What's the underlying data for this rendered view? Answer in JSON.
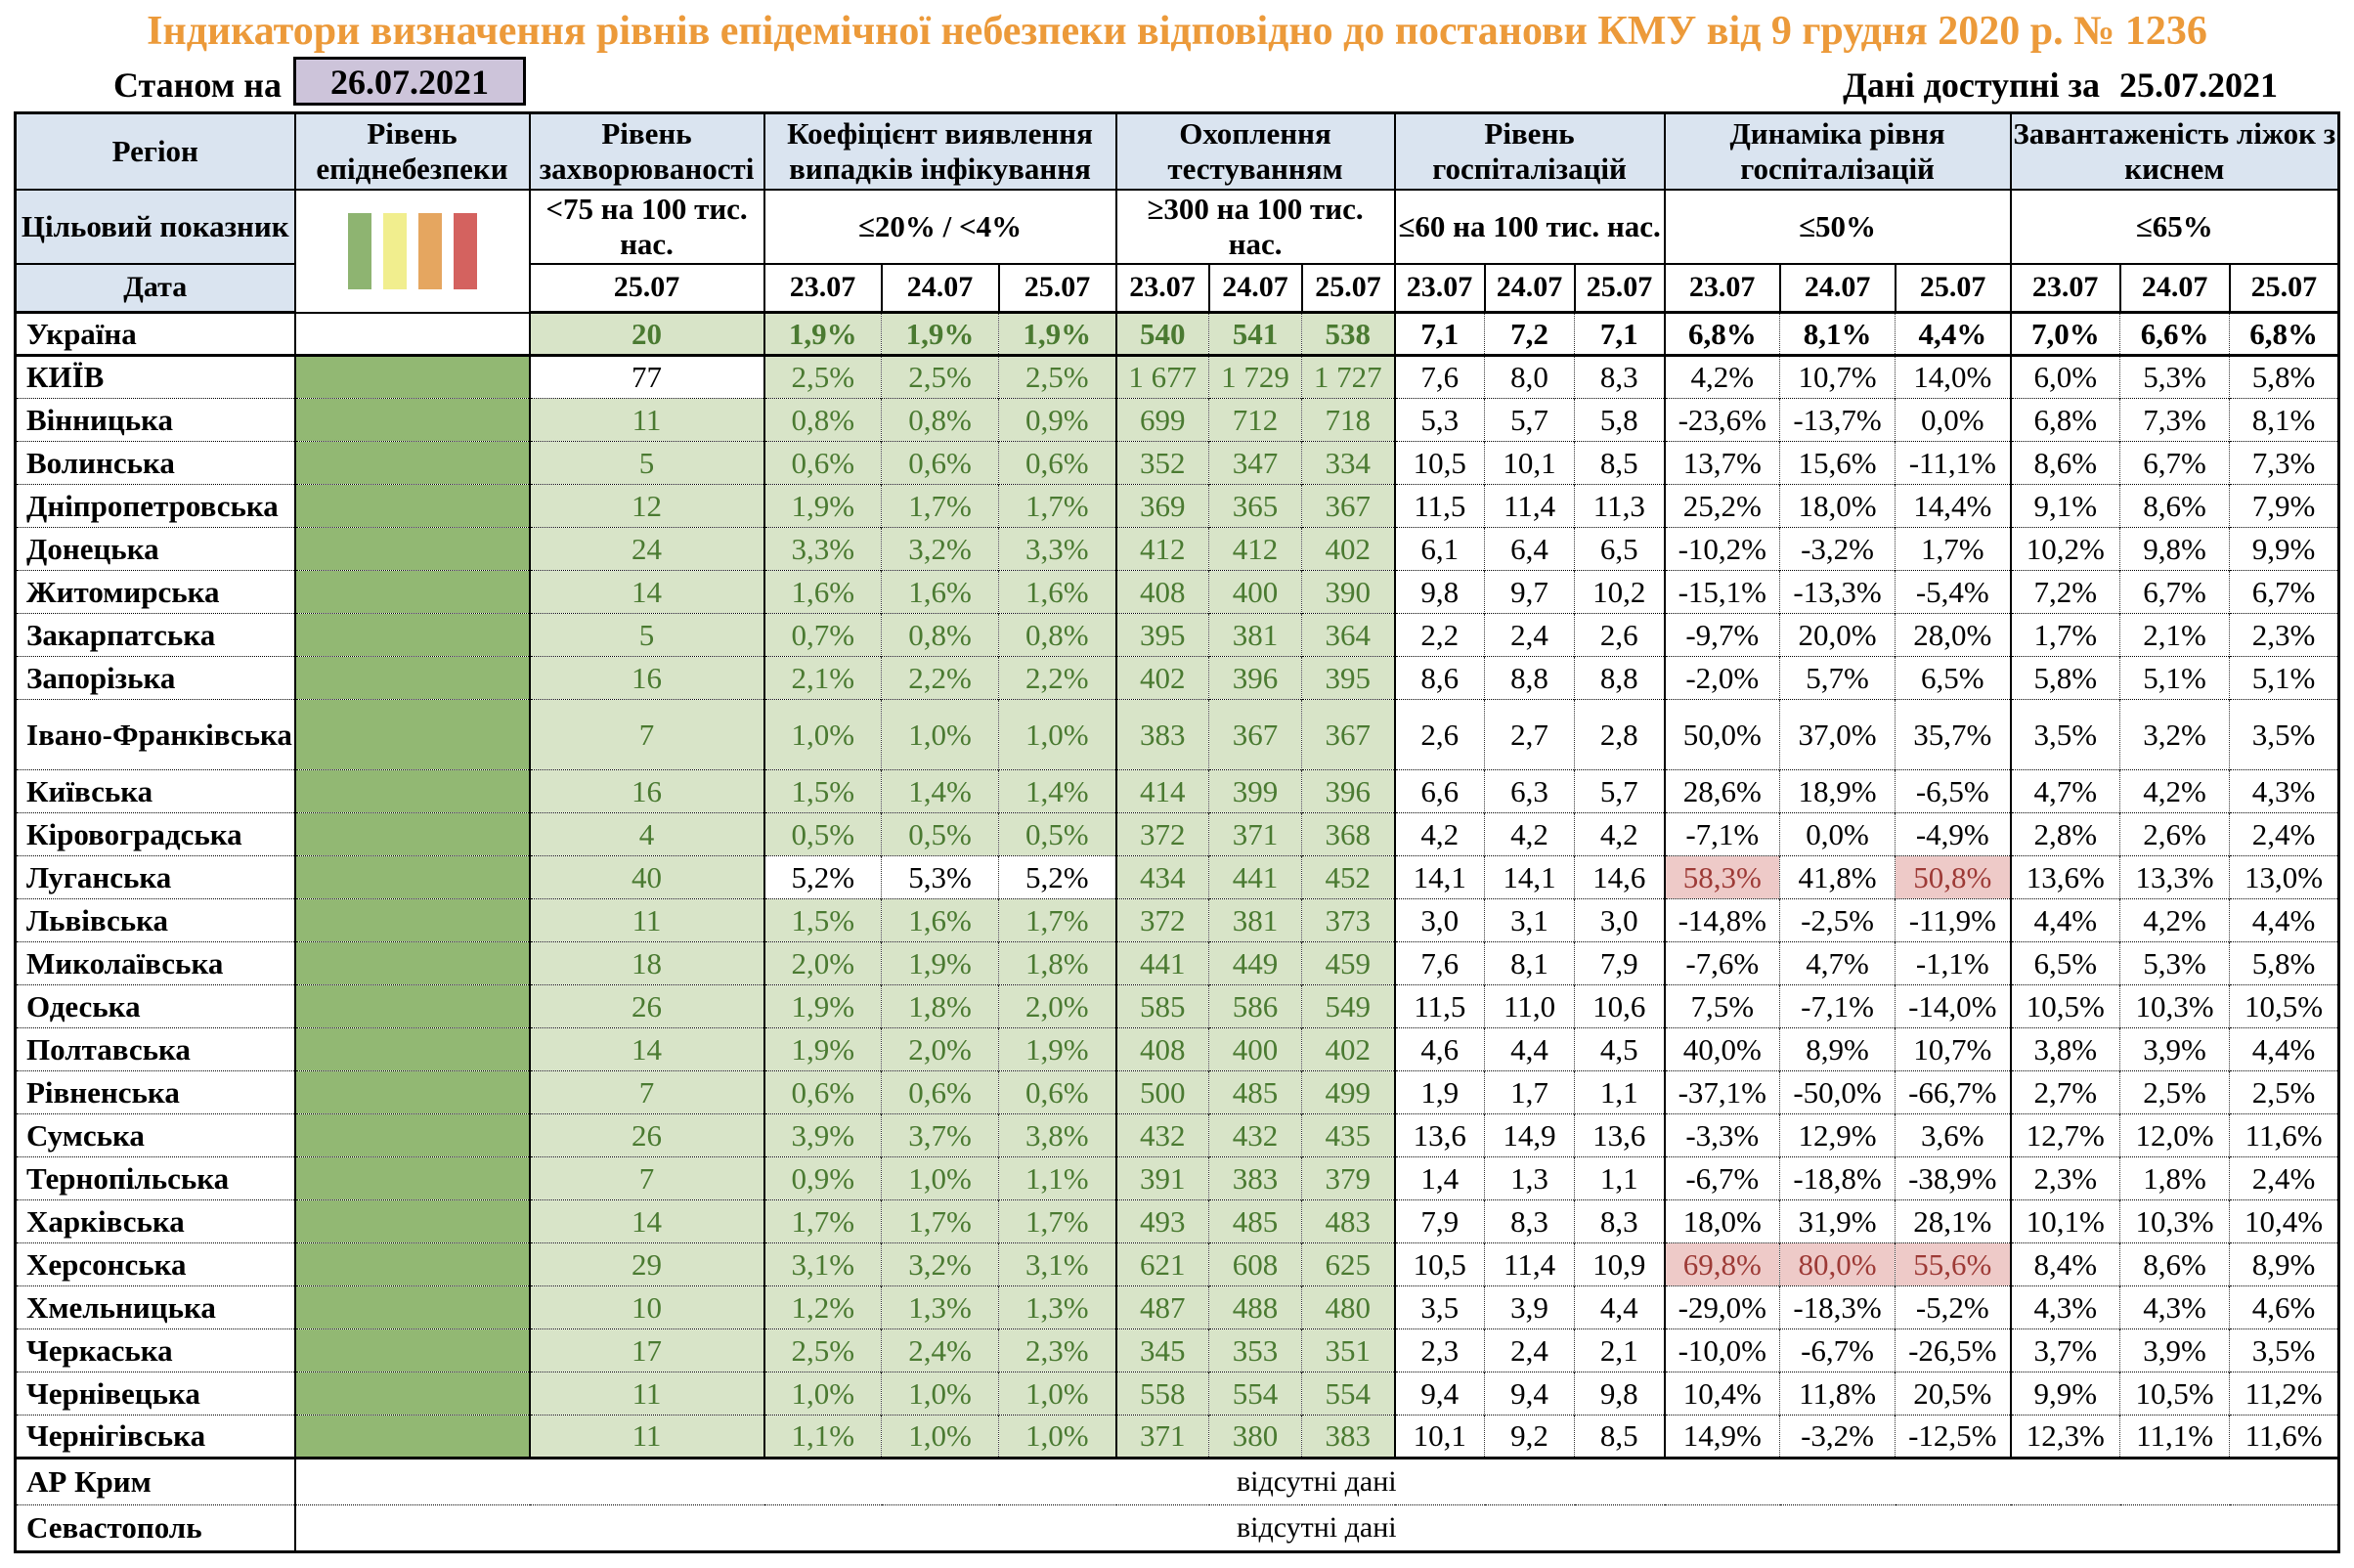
{
  "title": "Індикатори визначення рівнів епідемічної небезпеки відповідно до постанови КМУ від 9 грудня 2020 р. № 1236",
  "top_bar": {
    "as_of_label": "Станом на",
    "as_of_date": "26.07.2021",
    "available_label": "Дані доступні за",
    "available_date": "25.07.2021"
  },
  "colors": {
    "title_color": "#ec9a3a",
    "header_bg": "#dae4f0",
    "asof_bg": "#cdc4da",
    "good_bg": "#d8e4c8",
    "good_text": "#4a7a31",
    "bad_bg": "#eecac8",
    "bad_text": "#9d3a36",
    "danger_green": "#92b873"
  },
  "legend_colors": [
    "#8eb471",
    "#f1ee8e",
    "#e5a660",
    "#d4625f"
  ],
  "table": {
    "header": {
      "region": "Регіон",
      "target_label": "Цільовий показник",
      "date_label": "Дата",
      "groups": [
        {
          "id": "danger",
          "label": "Рівень епіднебезпеки",
          "target": "",
          "dates": []
        },
        {
          "id": "sick",
          "label": "Рівень захворюваності",
          "target": "<75 на 100 тис. нас.",
          "dates": [
            "25.07"
          ]
        },
        {
          "id": "coef",
          "label": "Коефіцієнт виявлення випадків інфікування",
          "target": "≤20% / <4%",
          "dates": [
            "23.07",
            "24.07",
            "25.07"
          ]
        },
        {
          "id": "test",
          "label": "Охоплення тестуванням",
          "target": "≥300 на 100 тис. нас.",
          "dates": [
            "23.07",
            "24.07",
            "25.07"
          ]
        },
        {
          "id": "hosp",
          "label": "Рівень госпіталізацій",
          "target": "≤60 на 100 тис. нас.",
          "dates": [
            "23.07",
            "24.07",
            "25.07"
          ]
        },
        {
          "id": "dyn",
          "label": "Динаміка рівня госпіталізацій",
          "target": "≤50%",
          "dates": [
            "23.07",
            "24.07",
            "25.07"
          ]
        },
        {
          "id": "beds",
          "label": "Завантаженість ліжок з киснем",
          "target": "≤65%",
          "dates": [
            "23.07",
            "24.07",
            "25.07"
          ]
        }
      ]
    },
    "default_danger": "green",
    "default_bg": [
      "g",
      "g",
      "g",
      "g",
      "g",
      "g",
      "g",
      "w",
      "w",
      "w",
      "w",
      "w",
      "w",
      "w",
      "w",
      "w"
    ],
    "rows": [
      {
        "region": "Україна",
        "danger": "white",
        "bold": true,
        "values": [
          "20",
          "1,9%",
          "1,9%",
          "1,9%",
          "540",
          "541",
          "538",
          "7,1",
          "7,2",
          "7,1",
          "6,8%",
          "8,1%",
          "4,4%",
          "7,0%",
          "6,6%",
          "6,8%"
        ]
      },
      {
        "region": "КИЇВ",
        "thick_top": true,
        "bg": [
          "w",
          "g",
          "g",
          "g",
          "g",
          "g",
          "g",
          "w",
          "w",
          "w",
          "w",
          "w",
          "w",
          "w",
          "w",
          "w"
        ],
        "values": [
          "77",
          "2,5%",
          "2,5%",
          "2,5%",
          "1 677",
          "1 729",
          "1 727",
          "7,6",
          "8,0",
          "8,3",
          "4,2%",
          "10,7%",
          "14,0%",
          "6,0%",
          "5,3%",
          "5,8%"
        ]
      },
      {
        "region": "Вінницька",
        "values": [
          "11",
          "0,8%",
          "0,8%",
          "0,9%",
          "699",
          "712",
          "718",
          "5,3",
          "5,7",
          "5,8",
          "-23,6%",
          "-13,7%",
          "0,0%",
          "6,8%",
          "7,3%",
          "8,1%"
        ]
      },
      {
        "region": "Волинська",
        "values": [
          "5",
          "0,6%",
          "0,6%",
          "0,6%",
          "352",
          "347",
          "334",
          "10,5",
          "10,1",
          "8,5",
          "13,7%",
          "15,6%",
          "-11,1%",
          "8,6%",
          "6,7%",
          "7,3%"
        ]
      },
      {
        "region": "Дніпропетровська",
        "values": [
          "12",
          "1,9%",
          "1,7%",
          "1,7%",
          "369",
          "365",
          "367",
          "11,5",
          "11,4",
          "11,3",
          "25,2%",
          "18,0%",
          "14,4%",
          "9,1%",
          "8,6%",
          "7,9%"
        ]
      },
      {
        "region": "Донецька",
        "values": [
          "24",
          "3,3%",
          "3,2%",
          "3,3%",
          "412",
          "412",
          "402",
          "6,1",
          "6,4",
          "6,5",
          "-10,2%",
          "-3,2%",
          "1,7%",
          "10,2%",
          "9,8%",
          "9,9%"
        ]
      },
      {
        "region": "Житомирська",
        "values": [
          "14",
          "1,6%",
          "1,6%",
          "1,6%",
          "408",
          "400",
          "390",
          "9,8",
          "9,7",
          "10,2",
          "-15,1%",
          "-13,3%",
          "-5,4%",
          "7,2%",
          "6,7%",
          "6,7%"
        ]
      },
      {
        "region": "Закарпатська",
        "values": [
          "5",
          "0,7%",
          "0,8%",
          "0,8%",
          "395",
          "381",
          "364",
          "2,2",
          "2,4",
          "2,6",
          "-9,7%",
          "20,0%",
          "28,0%",
          "1,7%",
          "2,1%",
          "2,3%"
        ]
      },
      {
        "region": "Запорізька",
        "values": [
          "16",
          "2,1%",
          "2,2%",
          "2,2%",
          "402",
          "396",
          "395",
          "8,6",
          "8,8",
          "8,8",
          "-2,0%",
          "5,7%",
          "6,5%",
          "5,8%",
          "5,1%",
          "5,1%"
        ]
      },
      {
        "region": "Івано-Франківська",
        "tall": true,
        "values": [
          "7",
          "1,0%",
          "1,0%",
          "1,0%",
          "383",
          "367",
          "367",
          "2,6",
          "2,7",
          "2,8",
          "50,0%",
          "37,0%",
          "35,7%",
          "3,5%",
          "3,2%",
          "3,5%"
        ]
      },
      {
        "region": "Київська",
        "values": [
          "16",
          "1,5%",
          "1,4%",
          "1,4%",
          "414",
          "399",
          "396",
          "6,6",
          "6,3",
          "5,7",
          "28,6%",
          "18,9%",
          "-6,5%",
          "4,7%",
          "4,2%",
          "4,3%"
        ]
      },
      {
        "region": "Кіровоградська",
        "values": [
          "4",
          "0,5%",
          "0,5%",
          "0,5%",
          "372",
          "371",
          "368",
          "4,2",
          "4,2",
          "4,2",
          "-7,1%",
          "0,0%",
          "-4,9%",
          "2,8%",
          "2,6%",
          "2,4%"
        ]
      },
      {
        "region": "Луганська",
        "bg": [
          "g",
          "w",
          "w",
          "w",
          "g",
          "g",
          "g",
          "w",
          "w",
          "w",
          "r",
          "w",
          "r",
          "w",
          "w",
          "w"
        ],
        "values": [
          "40",
          "5,2%",
          "5,3%",
          "5,2%",
          "434",
          "441",
          "452",
          "14,1",
          "14,1",
          "14,6",
          "58,3%",
          "41,8%",
          "50,8%",
          "13,6%",
          "13,3%",
          "13,0%"
        ]
      },
      {
        "region": "Львівська",
        "values": [
          "11",
          "1,5%",
          "1,6%",
          "1,7%",
          "372",
          "381",
          "373",
          "3,0",
          "3,1",
          "3,0",
          "-14,8%",
          "-2,5%",
          "-11,9%",
          "4,4%",
          "4,2%",
          "4,4%"
        ]
      },
      {
        "region": "Миколаївська",
        "values": [
          "18",
          "2,0%",
          "1,9%",
          "1,8%",
          "441",
          "449",
          "459",
          "7,6",
          "8,1",
          "7,9",
          "-7,6%",
          "4,7%",
          "-1,1%",
          "6,5%",
          "5,3%",
          "5,8%"
        ]
      },
      {
        "region": "Одеська",
        "values": [
          "26",
          "1,9%",
          "1,8%",
          "2,0%",
          "585",
          "586",
          "549",
          "11,5",
          "11,0",
          "10,6",
          "7,5%",
          "-7,1%",
          "-14,0%",
          "10,5%",
          "10,3%",
          "10,5%"
        ]
      },
      {
        "region": "Полтавська",
        "values": [
          "14",
          "1,9%",
          "2,0%",
          "1,9%",
          "408",
          "400",
          "402",
          "4,6",
          "4,4",
          "4,5",
          "40,0%",
          "8,9%",
          "10,7%",
          "3,8%",
          "3,9%",
          "4,4%"
        ]
      },
      {
        "region": "Рівненська",
        "values": [
          "7",
          "0,6%",
          "0,6%",
          "0,6%",
          "500",
          "485",
          "499",
          "1,9",
          "1,7",
          "1,1",
          "-37,1%",
          "-50,0%",
          "-66,7%",
          "2,7%",
          "2,5%",
          "2,5%"
        ]
      },
      {
        "region": "Сумська",
        "values": [
          "26",
          "3,9%",
          "3,7%",
          "3,8%",
          "432",
          "432",
          "435",
          "13,6",
          "14,9",
          "13,6",
          "-3,3%",
          "12,9%",
          "3,6%",
          "12,7%",
          "12,0%",
          "11,6%"
        ]
      },
      {
        "region": "Тернопільська",
        "values": [
          "7",
          "0,9%",
          "1,0%",
          "1,1%",
          "391",
          "383",
          "379",
          "1,4",
          "1,3",
          "1,1",
          "-6,7%",
          "-18,8%",
          "-38,9%",
          "2,3%",
          "1,8%",
          "2,4%"
        ]
      },
      {
        "region": "Харківська",
        "values": [
          "14",
          "1,7%",
          "1,7%",
          "1,7%",
          "493",
          "485",
          "483",
          "7,9",
          "8,3",
          "8,3",
          "18,0%",
          "31,9%",
          "28,1%",
          "10,1%",
          "10,3%",
          "10,4%"
        ]
      },
      {
        "region": "Херсонська",
        "bg": [
          "g",
          "g",
          "g",
          "g",
          "g",
          "g",
          "g",
          "w",
          "w",
          "w",
          "r",
          "r",
          "r",
          "w",
          "w",
          "w"
        ],
        "values": [
          "29",
          "3,1%",
          "3,2%",
          "3,1%",
          "621",
          "608",
          "625",
          "10,5",
          "11,4",
          "10,9",
          "69,8%",
          "80,0%",
          "55,6%",
          "8,4%",
          "8,6%",
          "8,9%"
        ]
      },
      {
        "region": "Хмельницька",
        "values": [
          "10",
          "1,2%",
          "1,3%",
          "1,3%",
          "487",
          "488",
          "480",
          "3,5",
          "3,9",
          "4,4",
          "-29,0%",
          "-18,3%",
          "-5,2%",
          "4,3%",
          "4,3%",
          "4,6%"
        ]
      },
      {
        "region": "Черкаська",
        "values": [
          "17",
          "2,5%",
          "2,4%",
          "2,3%",
          "345",
          "353",
          "351",
          "2,3",
          "2,4",
          "2,1",
          "-10,0%",
          "-6,7%",
          "-26,5%",
          "3,7%",
          "3,9%",
          "3,5%"
        ]
      },
      {
        "region": "Чернівецька",
        "values": [
          "11",
          "1,0%",
          "1,0%",
          "1,0%",
          "558",
          "554",
          "554",
          "9,4",
          "9,4",
          "9,8",
          "10,4%",
          "11,8%",
          "20,5%",
          "9,9%",
          "10,5%",
          "11,2%"
        ]
      },
      {
        "region": "Чернігівська",
        "values": [
          "11",
          "1,1%",
          "1,0%",
          "1,0%",
          "371",
          "380",
          "383",
          "10,1",
          "9,2",
          "8,5",
          "14,9%",
          "-3,2%",
          "-12,5%",
          "12,3%",
          "11,1%",
          "11,6%"
        ]
      }
    ],
    "no_data_rows": [
      {
        "region": "АР Крим",
        "text": "відсутні дані"
      },
      {
        "region": "Севастополь",
        "text": "відсутні дані"
      }
    ]
  }
}
